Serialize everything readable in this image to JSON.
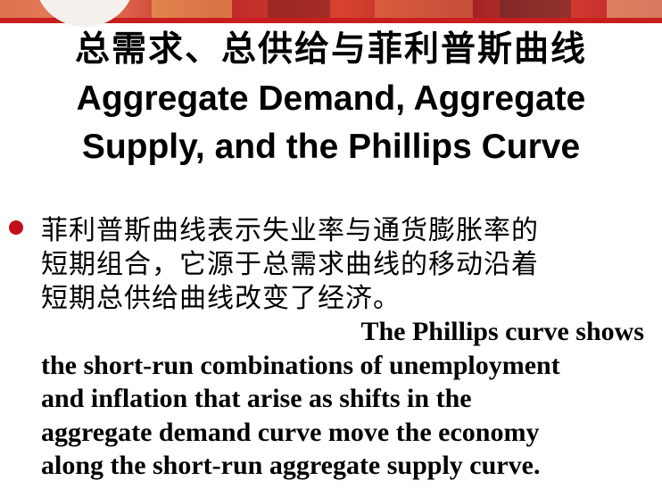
{
  "slide": {
    "title_cn": "总需求、总供给与菲利普斯曲线",
    "title_en_line1": "Aggregate Demand, Aggregate",
    "title_en_line2": "Supply, and the Phillips Curve",
    "bullet": {
      "cn_line1": "菲利普斯曲线表示失业率与通货膨胀率的",
      "cn_line2": "短期组合，它源于总需求曲线的移动沿着",
      "cn_line3": "短期总供给曲线改变了经济。",
      "en_line1": "The Phillips curve shows",
      "en_line2": "the short-run combinations of unemployment",
      "en_line3": "and inflation that arise as shifts in the",
      "en_line4": "aggregate demand curve move the economy",
      "en_line5": "along the short-run aggregate supply curve."
    }
  },
  "colors": {
    "bullet": "#c0101a",
    "banner": "#c81e1e",
    "text": "#000000"
  }
}
